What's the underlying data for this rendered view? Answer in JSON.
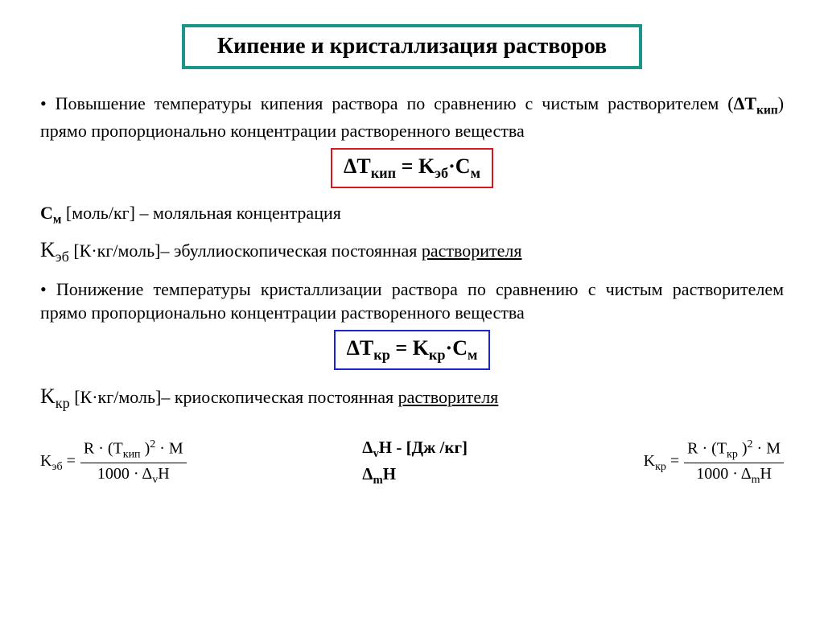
{
  "title": "Кипение и кристаллизация растворов",
  "colors": {
    "title_border": "#1a9688",
    "formula_border_red": "#d8171d",
    "formula_border_blue": "#1a24d6",
    "text": "#000000",
    "background": "#ffffff"
  },
  "para1_a": "Повышение температуры кипения раствора по сравнению с чистым растворителем (",
  "para1_sym": "ΔT",
  "para1_sub": "кип",
  "para1_b": ") прямо пропорционально концентрации растворенного вещества",
  "formula1": {
    "lhs": "ΔT",
    "lhs_sub": "кип",
    "eq": " = K",
    "k_sub": "эб",
    "dot": "·C",
    "c_sub": "м"
  },
  "def_cm_a": "С",
  "def_cm_sub": "м",
  "def_cm_b": " [моль/кг] – моляльная концентрация",
  "def_keb_a": "K",
  "def_keb_sub": "эб",
  "def_keb_b": " [К·кг/моль]– эбуллиоскопическая постоянная ",
  "def_keb_u": "растворителя",
  "para2": "Понижение температуры кристаллизации раствора по сравнению с чистым растворителем прямо пропорционально концентрации растворенного вещества",
  "formula2": {
    "lhs": "ΔT",
    "lhs_sub": "кр",
    "eq": " = K",
    "k_sub": "кр",
    "dot": "·C",
    "c_sub": "м"
  },
  "def_kkr_a": "K",
  "def_kkr_sub": "кр",
  "def_kkr_b": " [К·кг/моль]– криоскопическая постоянная ",
  "def_kkr_u": "растворителя",
  "bottom": {
    "keb": {
      "label": "K",
      "label_sub": "эб",
      "eq": " = ",
      "num_a": "R · (T",
      "num_sub": "кип",
      "num_b": " )",
      "num_sup": "2",
      "num_c": " · M",
      "den_a": "1000 · Δ",
      "den_sub": "v",
      "den_b": "H"
    },
    "notes_line1_a": "Δ",
    "notes_line1_sub": "v",
    "notes_line1_b": "H - [Дж /кг]",
    "notes_line2_a": "Δ",
    "notes_line2_sub": "m",
    "notes_line2_b": "H",
    "kkr": {
      "label": "K",
      "label_sub": "кр",
      "eq": " = ",
      "num_a": "R · (T",
      "num_sub": "кр",
      "num_b": " )",
      "num_sup": "2",
      "num_c": " · M",
      "den_a": "1000 · Δ",
      "den_sub": "m",
      "den_b": "H"
    }
  }
}
